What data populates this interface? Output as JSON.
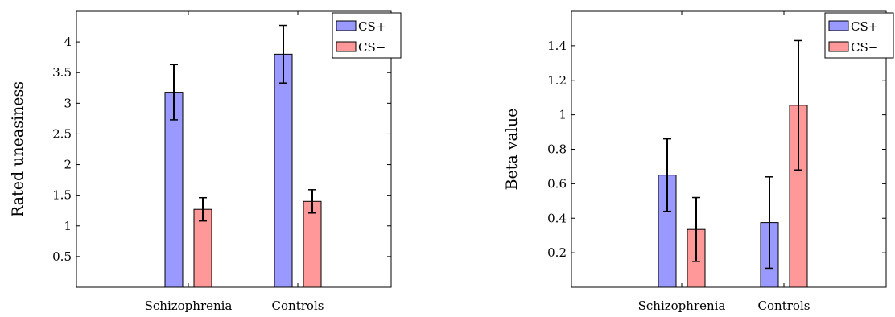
{
  "chart_data": [
    {
      "type": "bar",
      "categories": [
        "Schizophrenia",
        "Controls"
      ],
      "ylabel": "Rated uneasiness",
      "ylim": [
        0,
        4.5
      ],
      "yticks": [
        0.5,
        1,
        1.5,
        2,
        2.5,
        3,
        3.5,
        4
      ],
      "ytick_labels": [
        "0.5",
        "1",
        "1.5",
        "2",
        "2.5",
        "3",
        "3.5",
        "4"
      ],
      "legend_position": "top-right",
      "series": [
        {
          "name": "CS+",
          "color": "#9999ff",
          "values": [
            3.18,
            3.8
          ],
          "err_low": [
            2.73,
            3.33
          ],
          "err_high": [
            3.63,
            4.27
          ]
        },
        {
          "name": "CS−",
          "color": "#ff9999",
          "values": [
            1.27,
            1.4
          ],
          "err_low": [
            1.08,
            1.21
          ],
          "err_high": [
            1.46,
            1.59
          ]
        }
      ]
    },
    {
      "type": "bar",
      "categories": [
        "Schizophrenia",
        "Controls"
      ],
      "ylabel": "Beta value",
      "ylim": [
        0,
        1.6
      ],
      "yticks": [
        0.2,
        0.4,
        0.6,
        0.8,
        1,
        1.2,
        1.4
      ],
      "ytick_labels": [
        "0.2",
        "0.4",
        "0.6",
        "0.8",
        "1",
        "1.2",
        "1.4"
      ],
      "legend_position": "top-right",
      "series": [
        {
          "name": "CS+",
          "color": "#9999ff",
          "values": [
            0.65,
            0.375
          ],
          "err_low": [
            0.44,
            0.11
          ],
          "err_high": [
            0.86,
            0.64
          ]
        },
        {
          "name": "CS−",
          "color": "#ff9999",
          "values": [
            0.335,
            1.055
          ],
          "err_low": [
            0.15,
            0.68
          ],
          "err_high": [
            0.52,
            1.43
          ]
        }
      ]
    }
  ]
}
